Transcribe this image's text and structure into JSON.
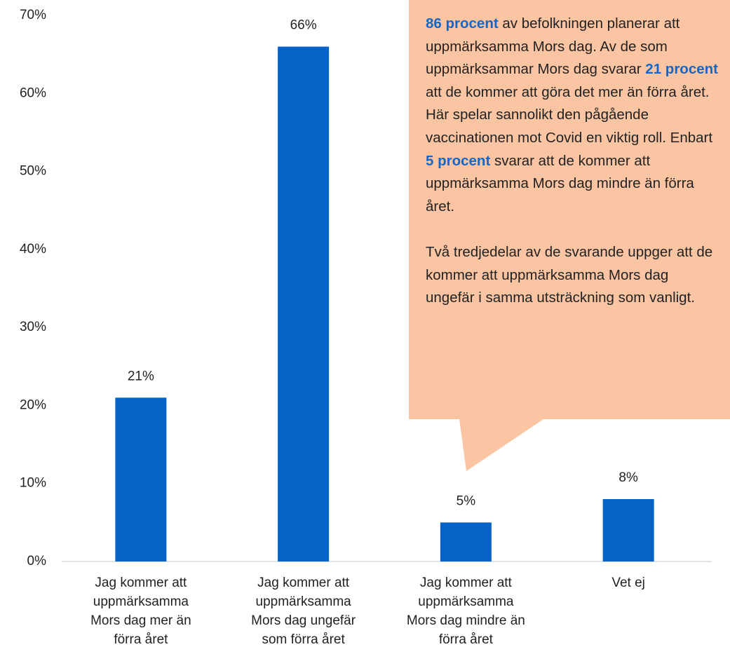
{
  "chart_data": {
    "type": "bar",
    "categories": [
      "Jag kommer att\nuppmärksamma\nMors dag mer än\nförra året",
      "Jag kommer att\nuppmärksamma\nMors dag ungefär\nsom förra året",
      "Jag kommer att\nuppmärksamma\nMors dag mindre än\nförra året",
      "Vet ej"
    ],
    "values": [
      21,
      66,
      5,
      8
    ],
    "value_labels": [
      "21%",
      "66%",
      "5%",
      "8%"
    ],
    "color": "#0563c8",
    "ylim": [
      0,
      70
    ],
    "yticks": [
      {
        "value": 0,
        "label": "0%"
      },
      {
        "value": 10,
        "label": "10%"
      },
      {
        "value": 20,
        "label": "20%"
      },
      {
        "value": 30,
        "label": "30%"
      },
      {
        "value": 40,
        "label": "40%"
      },
      {
        "value": 50,
        "label": "50%"
      },
      {
        "value": 60,
        "label": "60%"
      },
      {
        "value": 70,
        "label": "70%"
      }
    ],
    "grid": false,
    "annotation": {
      "color": "#fbc5a3",
      "paragraphs": [
        [
          {
            "text": "86 procent",
            "highlight": true
          },
          {
            "text": " av befolkningen planerar att uppmärksamma Mors dag.  Av de som uppmärksammar Mors dag svarar ",
            "highlight": false
          },
          {
            "text": "21 procent",
            "highlight": true
          },
          {
            "text": " att de kommer att göra det mer än förra året. Här spelar sannolikt den pågående vaccinationen mot Covid en viktig roll. Enbart ",
            "highlight": false
          },
          {
            "text": "5 procent",
            "highlight": true
          },
          {
            "text": " svarar att de kommer att uppmärksamma Mors dag mindre än förra året.",
            "highlight": false
          }
        ],
        [
          {
            "text": "Två tredjedelar av de svarande uppger att de kommer att uppmärksamma Mors dag ungefär i samma utsträckning som vanligt.",
            "highlight": false
          }
        ]
      ]
    }
  }
}
